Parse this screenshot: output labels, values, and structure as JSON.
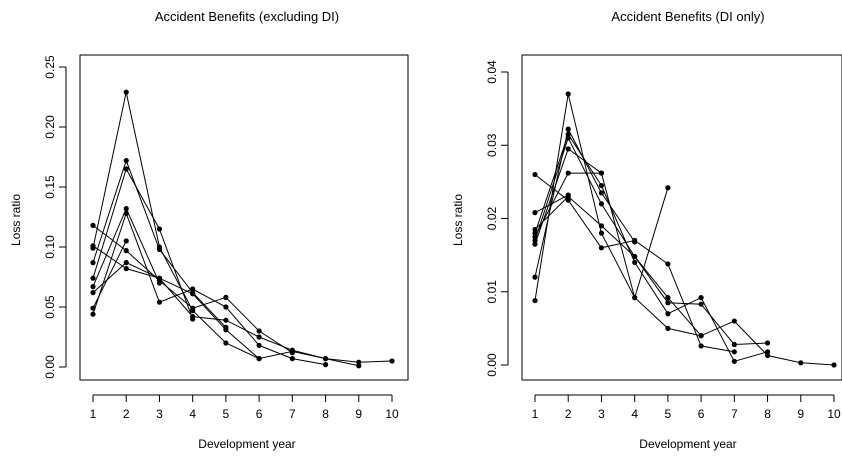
{
  "chart_data": [
    {
      "type": "line",
      "title": "Accident Benefits (excluding DI)",
      "xlabel": "Development year",
      "ylabel": "Loss ratio",
      "xlim": [
        1,
        10
      ],
      "ylim": [
        0,
        0.25
      ],
      "x_ticks": [
        1,
        2,
        3,
        4,
        5,
        6,
        7,
        8,
        9,
        10
      ],
      "y_ticks": [
        0.0,
        0.05,
        0.1,
        0.15,
        0.2,
        0.25
      ],
      "y_tick_labels": [
        "0.00",
        "0.05",
        "0.10",
        "0.15",
        "0.20",
        "0.25"
      ],
      "grid": false,
      "legend": "none",
      "series": [
        {
          "x": [
            1,
            2,
            3,
            4,
            5,
            6,
            7,
            8,
            9,
            10
          ],
          "values": [
            0.101,
            0.082,
            0.074,
            0.061,
            0.031,
            0.007,
            0.013,
            0.007,
            0.004,
            0.005
          ]
        },
        {
          "x": [
            1,
            2,
            3,
            4,
            5,
            6,
            7,
            8,
            9
          ],
          "values": [
            0.062,
            0.087,
            0.074,
            0.042,
            0.039,
            0.025,
            0.014,
            0.007,
            0.001
          ]
        },
        {
          "x": [
            1,
            2,
            3,
            4,
            5,
            6,
            7,
            8
          ],
          "values": [
            0.044,
            0.128,
            0.054,
            0.065,
            0.05,
            0.018,
            0.007,
            0.002
          ]
        },
        {
          "x": [
            1,
            2,
            3,
            4,
            5,
            6,
            7
          ],
          "values": [
            0.118,
            0.097,
            0.072,
            0.049,
            0.058,
            0.03,
            0.012
          ]
        },
        {
          "x": [
            1,
            2,
            3,
            4,
            5,
            6
          ],
          "values": [
            0.099,
            0.229,
            0.1,
            0.047,
            0.02,
            0.007
          ]
        },
        {
          "x": [
            1,
            2,
            3,
            4,
            5
          ],
          "values": [
            0.087,
            0.172,
            0.098,
            0.062,
            0.033
          ]
        },
        {
          "x": [
            1,
            2,
            3,
            4
          ],
          "values": [
            0.074,
            0.165,
            0.115,
            0.04
          ]
        },
        {
          "x": [
            1,
            2,
            3
          ],
          "values": [
            0.067,
            0.132,
            0.07
          ]
        },
        {
          "x": [
            1,
            2
          ],
          "values": [
            0.049,
            0.105
          ]
        }
      ]
    },
    {
      "type": "line",
      "title": "Accident Benefits (DI only)",
      "xlabel": "Development year",
      "ylabel": "Loss ratio",
      "xlim": [
        1,
        10
      ],
      "ylim": [
        0,
        0.04
      ],
      "x_ticks": [
        1,
        2,
        3,
        4,
        5,
        6,
        7,
        8,
        9,
        10
      ],
      "y_ticks": [
        0.0,
        0.01,
        0.02,
        0.03,
        0.04
      ],
      "y_tick_labels": [
        "0.00",
        "0.01",
        "0.02",
        "0.03",
        "0.04"
      ],
      "grid": false,
      "legend": "none",
      "series": [
        {
          "x": [
            1,
            2,
            3,
            4,
            5,
            6,
            7,
            8,
            9,
            10
          ],
          "values": [
            0.0185,
            0.023,
            0.019,
            0.0148,
            0.0092,
            0.004,
            0.006,
            0.0013,
            0.0003,
            0.0
          ]
        },
        {
          "x": [
            1,
            2,
            3,
            4,
            5,
            6,
            7,
            8
          ],
          "values": [
            0.017,
            0.031,
            0.022,
            0.0148,
            0.0085,
            0.0083,
            0.0028,
            0.003
          ]
        },
        {
          "x": [
            1,
            2,
            3,
            4,
            5,
            6,
            7,
            8
          ],
          "values": [
            0.018,
            0.0315,
            0.0245,
            0.014,
            0.007,
            0.0092,
            0.0005,
            0.0018
          ]
        },
        {
          "x": [
            1,
            2,
            3,
            4,
            5,
            6,
            7
          ],
          "values": [
            0.026,
            0.0225,
            0.016,
            0.017,
            0.0138,
            0.0026,
            0.0018
          ]
        },
        {
          "x": [
            1,
            2,
            3,
            4,
            5,
            6
          ],
          "values": [
            0.0165,
            0.0295,
            0.0262,
            0.0092,
            0.005,
            0.004
          ]
        },
        {
          "x": [
            1,
            2,
            3,
            4,
            5
          ],
          "values": [
            0.0088,
            0.037,
            0.018,
            0.0092,
            0.0242
          ]
        },
        {
          "x": [
            1,
            2,
            3,
            4
          ],
          "values": [
            0.012,
            0.0322,
            0.0235,
            0.0168
          ]
        },
        {
          "x": [
            1,
            2,
            3
          ],
          "values": [
            0.0175,
            0.0262,
            0.0262
          ]
        },
        {
          "x": [
            1,
            2
          ],
          "values": [
            0.0208,
            0.0232
          ]
        }
      ]
    }
  ]
}
